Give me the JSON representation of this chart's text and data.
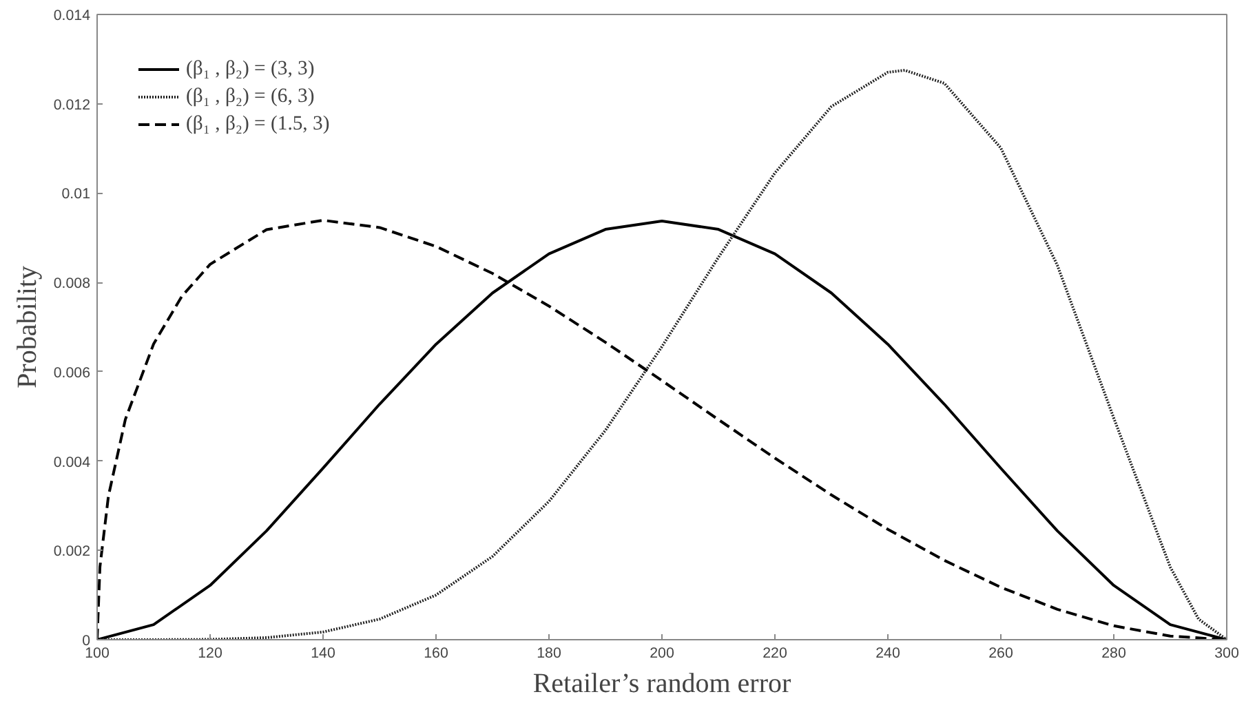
{
  "chart_data": {
    "type": "line",
    "xlabel": "Retailer’s random error",
    "ylabel": "Probability",
    "xlim": [
      100,
      300
    ],
    "ylim": [
      0,
      0.014
    ],
    "xticks": [
      100,
      120,
      140,
      160,
      180,
      200,
      220,
      240,
      260,
      280,
      300
    ],
    "yticks": [
      0,
      0.002,
      0.004,
      0.006,
      0.008,
      0.01,
      0.012,
      0.014
    ],
    "grid": false,
    "legend": "top left",
    "marker": "none",
    "series": [
      {
        "name": "(β₁ , β₂) = (3, 3)",
        "color": "#000000",
        "line_style": "solid",
        "x": [
          100,
          110,
          120,
          130,
          140,
          150,
          160,
          170,
          180,
          190,
          200,
          210,
          220,
          230,
          240,
          250,
          260,
          270,
          280,
          290,
          300
        ],
        "values": [
          0,
          0.000338,
          0.001215,
          0.002438,
          0.00384,
          0.005273,
          0.006615,
          0.007763,
          0.00864,
          0.009188,
          0.009375,
          0.009188,
          0.00864,
          0.007763,
          0.006615,
          0.005273,
          0.00384,
          0.002438,
          0.001215,
          0.000338,
          0
        ]
      },
      {
        "name": "(β₁ , β₂) = (6, 3)",
        "color": "#222222",
        "line_style": "dotted",
        "x": [
          100,
          110,
          120,
          130,
          140,
          150,
          160,
          170,
          180,
          190,
          200,
          210,
          220,
          230,
          240,
          243,
          250,
          260,
          270,
          280,
          290,
          295,
          300
        ],
        "values": [
          0,
          2e-07,
          6.8e-06,
          4.61e-05,
          0.000172,
          0.000461,
          0.001,
          0.001864,
          0.003097,
          0.004689,
          0.006563,
          0.008561,
          0.010451,
          0.011939,
          0.012706,
          0.01275,
          0.012459,
          0.01101,
          0.008386,
          0.00496,
          0.001625,
          0.000463,
          0
        ]
      },
      {
        "name": "(β₁ , β₂) = (1.5, 3)",
        "color": "#000000",
        "line_style": "dashed",
        "x": [
          100,
          100.5,
          102,
          105,
          110,
          115,
          120,
          130,
          140,
          150,
          160,
          170,
          180,
          190,
          200,
          210,
          220,
          230,
          240,
          250,
          260,
          270,
          280,
          290,
          300
        ],
        "values": [
          0,
          0.001632,
          0.003216,
          0.004932,
          0.006622,
          0.007689,
          0.008405,
          0.009182,
          0.009392,
          0.009229,
          0.008806,
          0.008202,
          0.007471,
          0.006659,
          0.005801,
          0.004928,
          0.004067,
          0.003241,
          0.002471,
          0.001776,
          0.001174,
          0.000681,
          0.000311,
          8e-05,
          0
        ]
      }
    ]
  }
}
